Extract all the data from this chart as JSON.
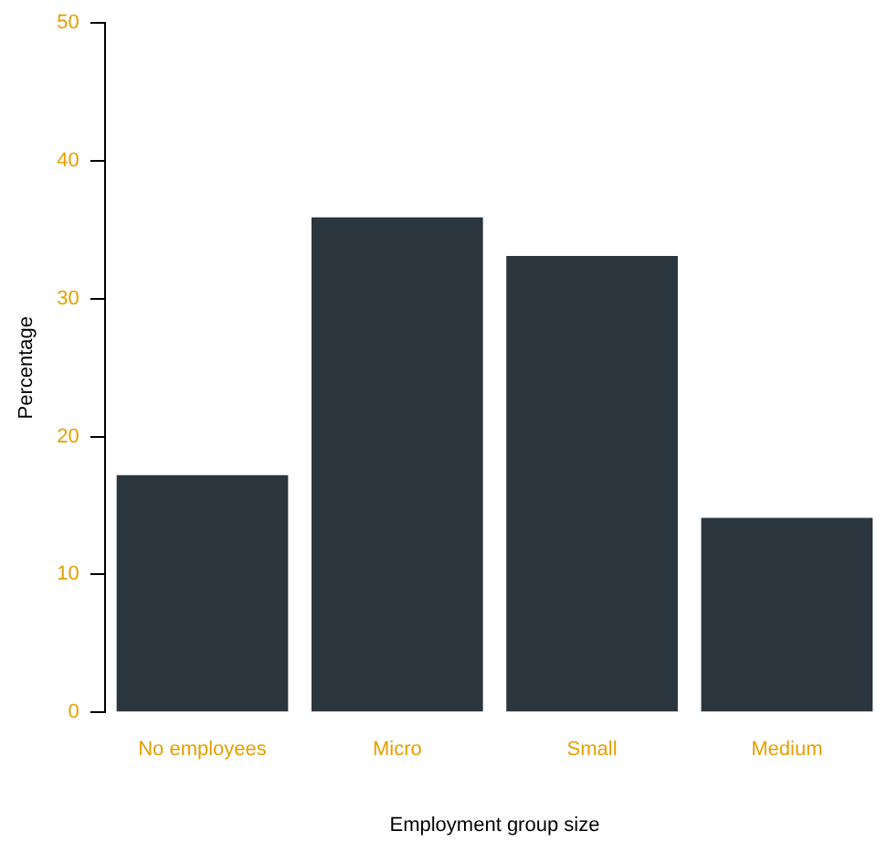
{
  "chart_data": {
    "type": "bar",
    "xlabel": "Employment group size",
    "ylabel": "Percentage",
    "categories": [
      "No employees",
      "Micro",
      "Small",
      "Medium"
    ],
    "values": [
      17.2,
      35.9,
      33.1,
      14.1
    ],
    "color": "#2b353d",
    "ylim": [
      0,
      50
    ],
    "yticks": [
      0,
      10,
      20,
      30,
      40,
      50
    ],
    "grid": false,
    "legend": false
  }
}
